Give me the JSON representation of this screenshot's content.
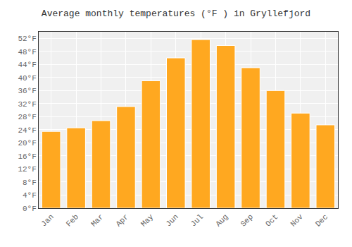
{
  "chart_data": {
    "type": "bar",
    "title": "Average monthly temperatures (°F ) in Gryllefjord",
    "categories": [
      "Jan",
      "Feb",
      "Mar",
      "Apr",
      "May",
      "Jun",
      "Jul",
      "Aug",
      "Sep",
      "Oct",
      "Nov",
      "Dec"
    ],
    "values": [
      23.5,
      24.6,
      26.8,
      31.1,
      39.0,
      46.0,
      51.6,
      49.8,
      43.0,
      36.0,
      29.1,
      25.5
    ],
    "color": "#FFA820",
    "ylim": [
      0,
      54
    ],
    "yticks": [
      {
        "value": 0,
        "label": "0°F"
      },
      {
        "value": 4,
        "label": "4°F"
      },
      {
        "value": 8,
        "label": "8°F"
      },
      {
        "value": 12,
        "label": "12°F"
      },
      {
        "value": 16,
        "label": "16°F"
      },
      {
        "value": 20,
        "label": "20°F"
      },
      {
        "value": 24,
        "label": "24°F"
      },
      {
        "value": 28,
        "label": "28°F"
      },
      {
        "value": 32,
        "label": "32°F"
      },
      {
        "value": 36,
        "label": "36°F"
      },
      {
        "value": 40,
        "label": "40°F"
      },
      {
        "value": 44,
        "label": "44°F"
      },
      {
        "value": 48,
        "label": "48°F"
      },
      {
        "value": 52,
        "label": "52°F"
      }
    ],
    "grid": true
  }
}
